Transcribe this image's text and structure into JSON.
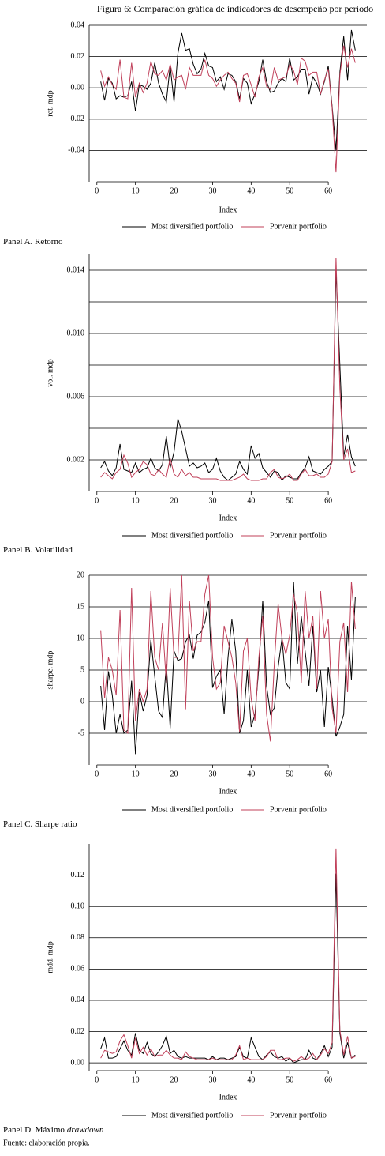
{
  "figure_title": "Figura 6: Comparación gráfica de indicadores de desempeño por periodo",
  "source": "Fuente: elaboración propia.",
  "chart_data": [
    {
      "type": "line",
      "caption": "Panel A. Retorno",
      "x_label": "Index",
      "y_label": "ret. mdp",
      "xlim": [
        -2,
        70
      ],
      "xticks": [
        0,
        10,
        20,
        30,
        40,
        50,
        60
      ],
      "ylim": [
        -0.06,
        0.04
      ],
      "yticks": [
        -0.04,
        -0.02,
        {
          "value": 0,
          "label": "0.00"
        },
        0.02,
        0.04
      ],
      "grid": true,
      "x": [
        1,
        2,
        3,
        4,
        5,
        6,
        7,
        8,
        9,
        10,
        11,
        12,
        13,
        14,
        15,
        16,
        17,
        18,
        19,
        20,
        21,
        22,
        23,
        24,
        25,
        26,
        27,
        28,
        29,
        30,
        31,
        32,
        33,
        34,
        35,
        36,
        37,
        38,
        39,
        40,
        41,
        42,
        43,
        44,
        45,
        46,
        47,
        48,
        49,
        50,
        51,
        52,
        53,
        54,
        55,
        56,
        57,
        58,
        59,
        60,
        61,
        62,
        63,
        64,
        65,
        66,
        67
      ],
      "series": [
        {
          "name": "Most diversified portfolio",
          "color": "#000000",
          "values": [
            0.004,
            -0.008,
            0.006,
            0.003,
            -0.007,
            -0.005,
            -0.006,
            -0.005,
            0.004,
            -0.015,
            0.002,
            0.001,
            -0.001,
            0.003,
            0.016,
            0.003,
            -0.004,
            -0.009,
            0.014,
            -0.009,
            0.022,
            0.035,
            0.024,
            0.025,
            0.015,
            0.009,
            0.012,
            0.022,
            0.014,
            0.013,
            0.004,
            0.007,
            -0.001,
            0.009,
            0.008,
            0.004,
            -0.007,
            0.006,
            0.003,
            -0.01,
            -0.004,
            0.004,
            0.018,
            0.004,
            -0.003,
            -0.002,
            0.003,
            0.006,
            0.004,
            0.019,
            0.005,
            0.007,
            0.012,
            0.012,
            -0.004,
            0.007,
            0.003,
            -0.004,
            0.004,
            0.014,
            -0.012,
            -0.04,
            0.01,
            0.033,
            0.005,
            0.037,
            0.024
          ]
        },
        {
          "name": "Porvenir portfolio",
          "color": "#c0405a",
          "values": [
            0.011,
            0.001,
            0.007,
            0.002,
            -0.001,
            0.018,
            -0.006,
            -0.007,
            0.016,
            -0.006,
            0.003,
            -0.003,
            0.003,
            0.017,
            0.009,
            0.008,
            0.011,
            0.005,
            0.015,
            0.005,
            0.007,
            0.008,
            -0.001,
            0.013,
            0.008,
            0.008,
            0.008,
            0.018,
            0.008,
            0.006,
            0.001,
            0.005,
            0.008,
            0.01,
            0.006,
            0.003,
            -0.009,
            0.008,
            0.009,
            0.002,
            -0.006,
            0.007,
            0.013,
            0.001,
            -0.001,
            0.013,
            0.005,
            0.006,
            0.007,
            0.015,
            0.011,
            0.002,
            0.019,
            0.017,
            0.008,
            0.01,
            0.01,
            -0.004,
            0.005,
            0.012,
            -0.013,
            -0.054,
            0.008,
            0.027,
            0.013,
            0.025,
            0.016
          ]
        }
      ]
    },
    {
      "type": "line",
      "caption": "Panel B. Volatilidad",
      "x_label": "Index",
      "y_label": "vol. mdp",
      "xlim": [
        -2,
        70
      ],
      "xticks": [
        0,
        10,
        20,
        30,
        40,
        50,
        60
      ],
      "ylim": [
        0,
        0.015
      ],
      "yticks": [
        0.002,
        0.006,
        {
          "value": 0.01,
          "label": "0.010"
        },
        0.014
      ],
      "ygrid_extra": [
        0.004,
        0.008,
        0.012
      ],
      "grid": true,
      "x": [
        1,
        2,
        3,
        4,
        5,
        6,
        7,
        8,
        9,
        10,
        11,
        12,
        13,
        14,
        15,
        16,
        17,
        18,
        19,
        20,
        21,
        22,
        23,
        24,
        25,
        26,
        27,
        28,
        29,
        30,
        31,
        32,
        33,
        34,
        35,
        36,
        37,
        38,
        39,
        40,
        41,
        42,
        43,
        44,
        45,
        46,
        47,
        48,
        49,
        50,
        51,
        52,
        53,
        54,
        55,
        56,
        57,
        58,
        59,
        60,
        61,
        62,
        63,
        64,
        65,
        66,
        67
      ],
      "series": [
        {
          "name": "Most diversified portfolio",
          "color": "#000000",
          "values": [
            0.0015,
            0.0019,
            0.0013,
            0.001,
            0.0015,
            0.003,
            0.0014,
            0.0013,
            0.0012,
            0.0018,
            0.0012,
            0.0014,
            0.0015,
            0.0021,
            0.0015,
            0.0013,
            0.0017,
            0.0035,
            0.0015,
            0.0025,
            0.0046,
            0.0038,
            0.0027,
            0.0016,
            0.0018,
            0.0015,
            0.0016,
            0.0018,
            0.0012,
            0.0014,
            0.0021,
            0.0013,
            0.0009,
            0.0007,
            0.0009,
            0.0011,
            0.0019,
            0.0014,
            0.0011,
            0.0029,
            0.0021,
            0.0024,
            0.0015,
            0.0012,
            0.0009,
            0.0013,
            0.0012,
            0.0007,
            0.001,
            0.0009,
            0.0008,
            0.0008,
            0.0012,
            0.0015,
            0.0022,
            0.0013,
            0.0012,
            0.0011,
            0.0014,
            0.0016,
            0.0019,
            0.014,
            0.008,
            0.0022,
            0.0036,
            0.0022,
            0.0016
          ]
        },
        {
          "name": "Porvenir portfolio",
          "color": "#c0405a",
          "values": [
            0.0009,
            0.0012,
            0.001,
            0.0008,
            0.0012,
            0.0014,
            0.0023,
            0.0018,
            0.0009,
            0.0012,
            0.0014,
            0.0019,
            0.0017,
            0.0011,
            0.001,
            0.0014,
            0.0011,
            0.0009,
            0.0021,
            0.0011,
            0.0009,
            0.0014,
            0.001,
            0.0012,
            0.0009,
            0.0009,
            0.0008,
            0.0008,
            0.0008,
            0.0008,
            0.0008,
            0.0007,
            0.0007,
            0.0007,
            0.0007,
            0.0008,
            0.0009,
            0.0011,
            0.0008,
            0.0007,
            0.0007,
            0.0007,
            0.0008,
            0.0008,
            0.0012,
            0.0014,
            0.0009,
            0.0008,
            0.0009,
            0.0011,
            0.0007,
            0.0007,
            0.0011,
            0.0014,
            0.001,
            0.001,
            0.0011,
            0.0009,
            0.0009,
            0.0011,
            0.0019,
            0.0148,
            0.0065,
            0.002,
            0.0027,
            0.0012,
            0.0013
          ]
        }
      ]
    },
    {
      "type": "line",
      "caption": "Panel C. Sharpe ratio",
      "x_label": "Index",
      "y_label": "sharpe. mdp",
      "xlim": [
        -2,
        70
      ],
      "xticks": [
        0,
        10,
        20,
        30,
        40,
        50,
        60
      ],
      "ylim": [
        -10,
        20
      ],
      "yticks": [
        -5,
        0,
        5,
        10,
        15,
        20
      ],
      "grid": true,
      "x": [
        1,
        2,
        3,
        4,
        5,
        6,
        7,
        8,
        9,
        10,
        11,
        12,
        13,
        14,
        15,
        16,
        17,
        18,
        19,
        20,
        21,
        22,
        23,
        24,
        25,
        26,
        27,
        28,
        29,
        30,
        31,
        32,
        33,
        34,
        35,
        36,
        37,
        38,
        39,
        40,
        41,
        42,
        43,
        44,
        45,
        46,
        47,
        48,
        49,
        50,
        51,
        52,
        53,
        54,
        55,
        56,
        57,
        58,
        59,
        60,
        61,
        62,
        63,
        64,
        65,
        66,
        67
      ],
      "series": [
        {
          "name": "Most diversified portfolio",
          "color": "#000000",
          "values": [
            2.5,
            -4.5,
            4.8,
            1,
            -5,
            -2,
            -5,
            -4.5,
            3.3,
            -8.3,
            1.5,
            -1.5,
            1,
            9.8,
            4,
            -1.5,
            -2.5,
            6,
            -4.2,
            8,
            6.5,
            6.8,
            9.5,
            10.5,
            6.8,
            10.5,
            11,
            12.5,
            16,
            2.2,
            4,
            5,
            -2,
            7,
            13,
            8,
            -5,
            -3,
            5,
            -4,
            -2,
            5.5,
            16,
            2.5,
            -2,
            -1,
            5.5,
            10,
            3,
            2,
            19,
            6,
            13.5,
            8,
            2.5,
            12,
            1.5,
            5,
            -4,
            5.5,
            0.5,
            -5.5,
            -4,
            -2,
            12,
            3.5,
            16.5
          ]
        },
        {
          "name": "Porvenir portfolio",
          "color": "#c0405a",
          "values": [
            11.3,
            0.5,
            7,
            5,
            1,
            14.5,
            -4.5,
            -5,
            18,
            -3,
            2,
            0,
            2,
            17.5,
            7,
            5,
            12.5,
            3,
            18,
            7,
            7,
            20,
            -1.2,
            16,
            8,
            9.5,
            9.5,
            17,
            20,
            7,
            2,
            3,
            12,
            9.5,
            7,
            3,
            -4.8,
            8,
            10,
            0.5,
            -3,
            7,
            13.5,
            -2,
            -6.3,
            6,
            15.5,
            10,
            7.5,
            10.5,
            17,
            14,
            3,
            17.5,
            10,
            13.5,
            2,
            17.5,
            10,
            13,
            -1,
            -5,
            9.5,
            12.5,
            1.5,
            19,
            11.5
          ]
        }
      ]
    },
    {
      "type": "line",
      "caption": "Panel D. Máximo",
      "caption_italic": "drawdown",
      "x_label": "Index",
      "y_label": "mdd. mdp",
      "xlim": [
        -2,
        70
      ],
      "xticks": [
        0,
        10,
        20,
        30,
        40,
        50,
        60
      ],
      "ylim": [
        -0.005,
        0.14
      ],
      "yticks": [
        {
          "value": 0,
          "label": "0.00"
        },
        0.02,
        0.04,
        0.06,
        0.08,
        {
          "value": 0.1,
          "label": "0.10"
        },
        0.12
      ],
      "grid": true,
      "x": [
        1,
        2,
        3,
        4,
        5,
        6,
        7,
        8,
        9,
        10,
        11,
        12,
        13,
        14,
        15,
        16,
        17,
        18,
        19,
        20,
        21,
        22,
        23,
        24,
        25,
        26,
        27,
        28,
        29,
        30,
        31,
        32,
        33,
        34,
        35,
        36,
        37,
        38,
        39,
        40,
        41,
        42,
        43,
        44,
        45,
        46,
        47,
        48,
        49,
        50,
        51,
        52,
        53,
        54,
        55,
        56,
        57,
        58,
        59,
        60,
        61,
        62,
        63,
        64,
        65,
        66,
        67
      ],
      "series": [
        {
          "name": "Most diversified portfolio",
          "color": "#000000",
          "values": [
            0.009,
            0.016,
            0.003,
            0.003,
            0.004,
            0.009,
            0.014,
            0.008,
            0.005,
            0.019,
            0.008,
            0.006,
            0.013,
            0.006,
            0.004,
            0.007,
            0.011,
            0.017,
            0.006,
            0.008,
            0.004,
            0.003,
            0.004,
            0.003,
            0.003,
            0.003,
            0.003,
            0.003,
            0.002,
            0.004,
            0.002,
            0.003,
            0.003,
            0.002,
            0.003,
            0.004,
            0.01,
            0.004,
            0.003,
            0.016,
            0.01,
            0.004,
            0.002,
            0.005,
            0.007,
            0.004,
            0.003,
            0.004,
            0.001,
            0.003,
            0,
            0.001,
            0.002,
            0.002,
            0.008,
            0.003,
            0.002,
            0.006,
            0.011,
            0.004,
            0.01,
            0.121,
            0.019,
            0.003,
            0.013,
            0.003,
            0.005
          ]
        },
        {
          "name": "Porvenir portfolio",
          "color": "#c0405a",
          "values": [
            0.003,
            0.008,
            0.007,
            0.006,
            0.007,
            0.014,
            0.018,
            0.011,
            0.003,
            0.016,
            0.006,
            0.01,
            0.005,
            0.009,
            0.004,
            0.005,
            0.005,
            0.008,
            0.005,
            0.003,
            0.003,
            0.002,
            0.007,
            0.004,
            0.003,
            0.002,
            0.002,
            0.002,
            0.002,
            0.003,
            0.002,
            0.002,
            0.002,
            0.002,
            0.002,
            0.005,
            0.011,
            0.002,
            0.003,
            0.002,
            0.002,
            0.002,
            0.002,
            0.004,
            0.008,
            0.008,
            0.002,
            0.002,
            0.003,
            0.003,
            0.001,
            0.002,
            0.004,
            0.002,
            0.003,
            0.006,
            0.002,
            0.005,
            0.009,
            0.006,
            0.013,
            0.137,
            0.021,
            0.005,
            0.017,
            0.003,
            0.004
          ]
        }
      ]
    }
  ]
}
